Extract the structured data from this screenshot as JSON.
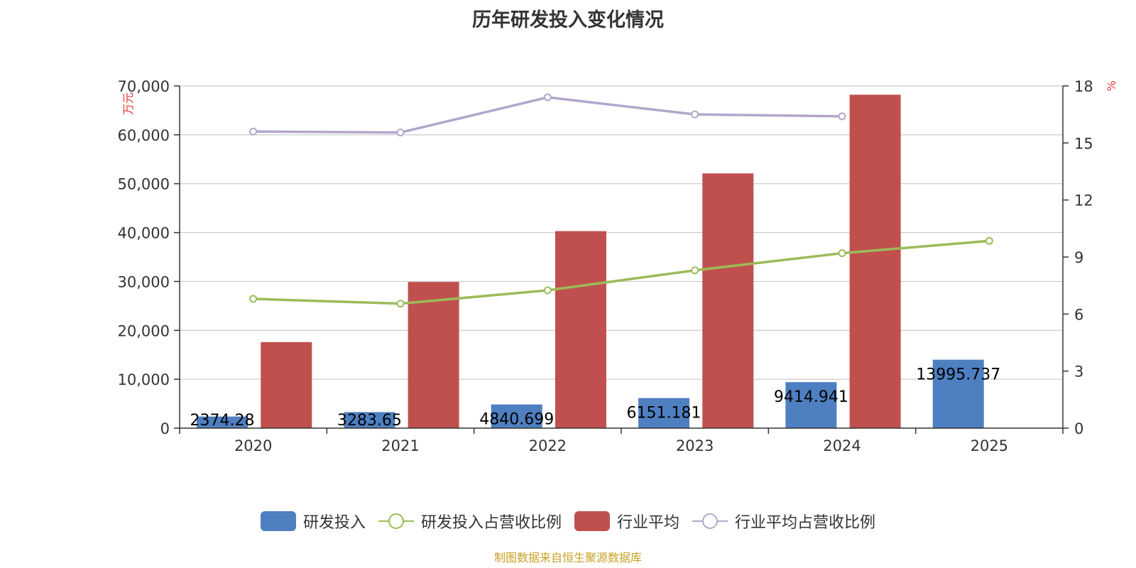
{
  "title": "历年研发投入变化情况",
  "source": "制图数据来自恒生聚源数据库",
  "chart_data": {
    "type": "bar",
    "categories": [
      "2020",
      "2021",
      "2022",
      "2023",
      "2024",
      "2025"
    ],
    "y_left": {
      "label": "万元",
      "min": 0,
      "max": 70000,
      "ticks": [
        "0",
        "10,000",
        "20,000",
        "30,000",
        "40,000",
        "50,000",
        "60,000",
        "70,000"
      ]
    },
    "y_right": {
      "label": "%",
      "min": 0,
      "max": 18,
      "ticks": [
        "0",
        "3",
        "6",
        "9",
        "12",
        "15",
        "18"
      ]
    },
    "grid": true,
    "legend_position": "bottom",
    "series": [
      {
        "name": "研发投入",
        "type": "bar",
        "axis": "left",
        "color": "#4e7fc1",
        "values": [
          2374.28,
          3283.65,
          4840.699,
          6151.181,
          9414.941,
          13995.737
        ],
        "labels": [
          "2374.28",
          "3283.65",
          "4840.699",
          "6151.181",
          "9414.941",
          "13995.737"
        ]
      },
      {
        "name": "研发投入占营收比例",
        "type": "line",
        "axis": "right",
        "color": "#9bbb59",
        "values": [
          6.8,
          6.55,
          7.25,
          8.3,
          9.2,
          9.85
        ]
      },
      {
        "name": "行业平均",
        "type": "bar",
        "axis": "left",
        "color": "#c0504d",
        "values": [
          17600,
          29900,
          40300,
          52100,
          68200,
          null
        ]
      },
      {
        "name": "行业平均占营收比例",
        "type": "line",
        "axis": "right",
        "color": "#b3a6cc",
        "values": [
          15.6,
          15.55,
          17.4,
          16.5,
          16.4,
          null
        ]
      }
    ]
  }
}
